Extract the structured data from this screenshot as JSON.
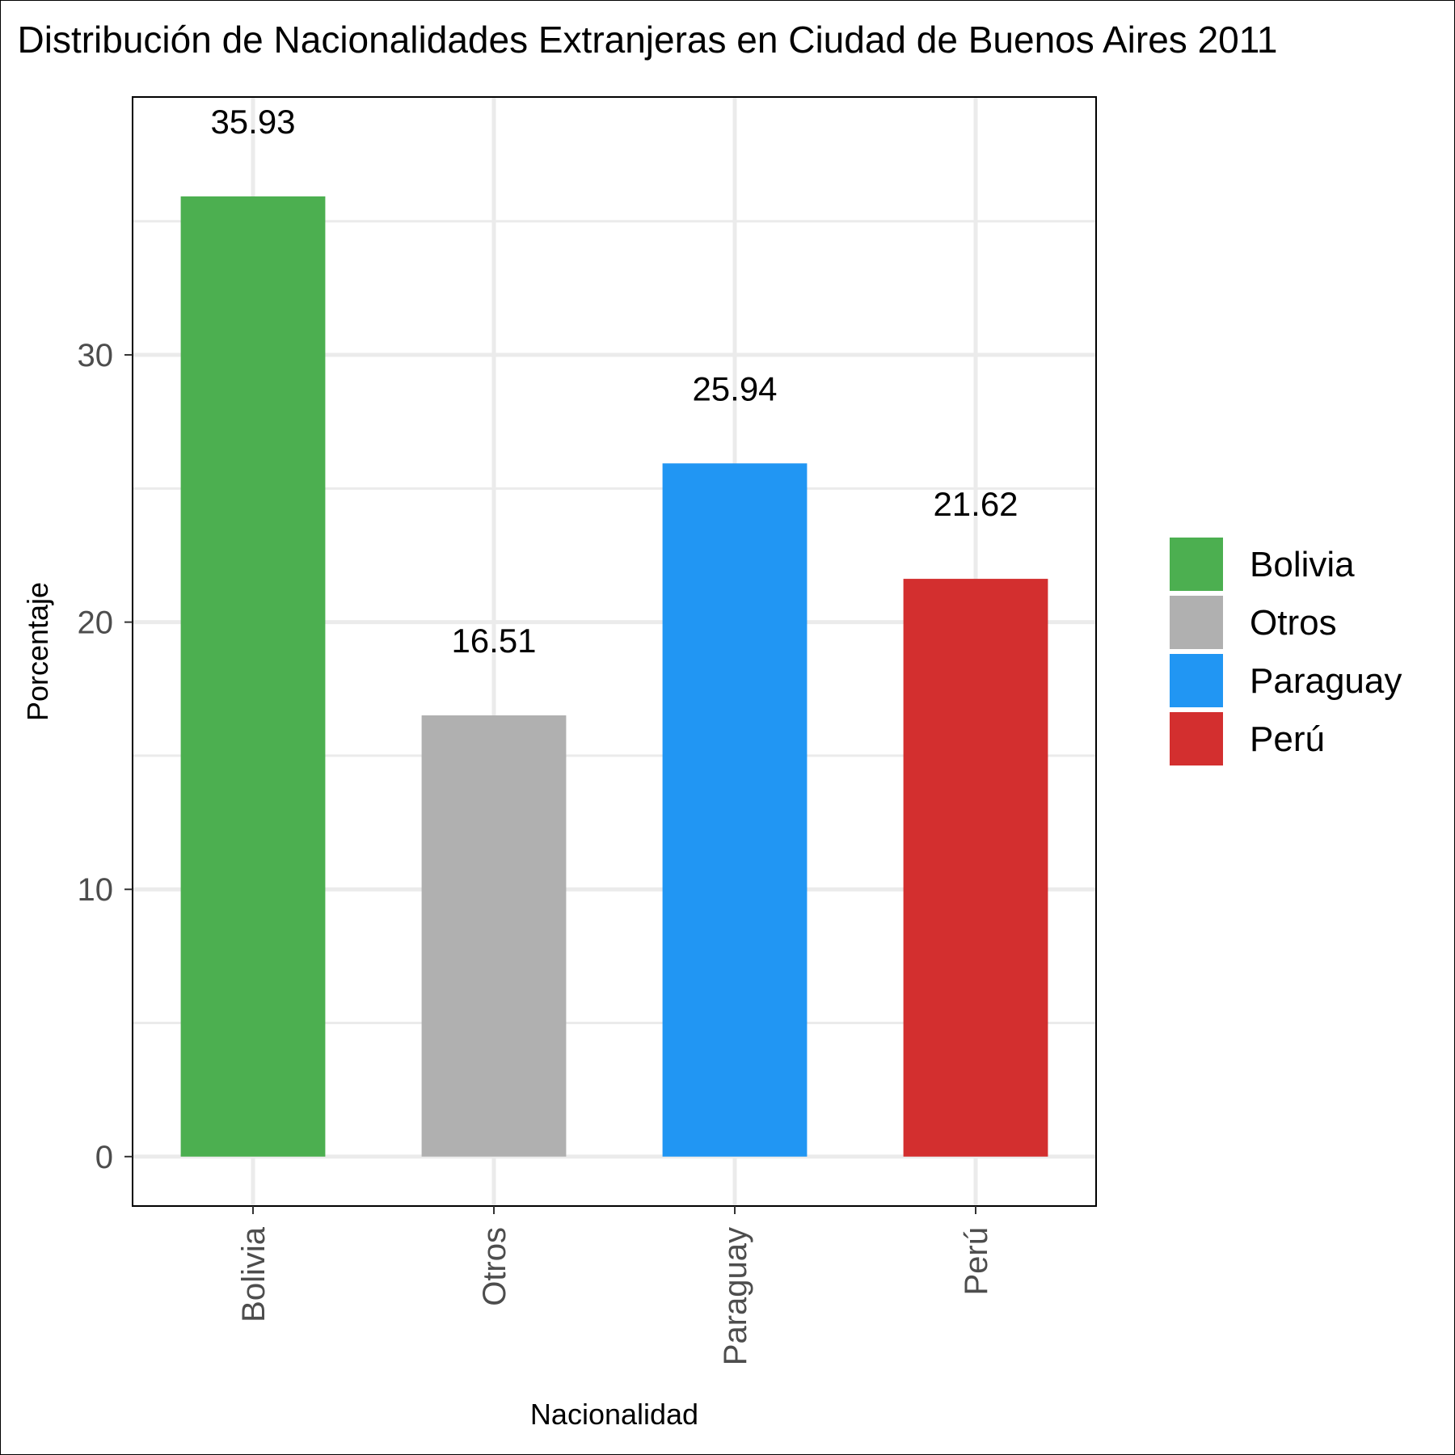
{
  "chart_data": {
    "type": "bar",
    "title": "Distribución de Nacionalidades Extranjeras en Ciudad de Buenos Aires 2011",
    "xlabel": "Nacionalidad",
    "ylabel": "Porcentaje",
    "categories": [
      "Bolivia",
      "Otros",
      "Paraguay",
      "Perú"
    ],
    "values": [
      35.93,
      16.51,
      25.94,
      21.62
    ],
    "value_labels": [
      "35.93",
      "16.51",
      "25.94",
      "21.62"
    ],
    "colors": [
      "#4caf50",
      "#b0b0b0",
      "#2196f3",
      "#d32f2f"
    ],
    "y_ticks": [
      0,
      10,
      20,
      30
    ],
    "ylim": [
      -1.85,
      39.65
    ],
    "grid": true,
    "legend": {
      "position": "right",
      "items": [
        "Bolivia",
        "Otros",
        "Paraguay",
        "Perú"
      ]
    }
  }
}
